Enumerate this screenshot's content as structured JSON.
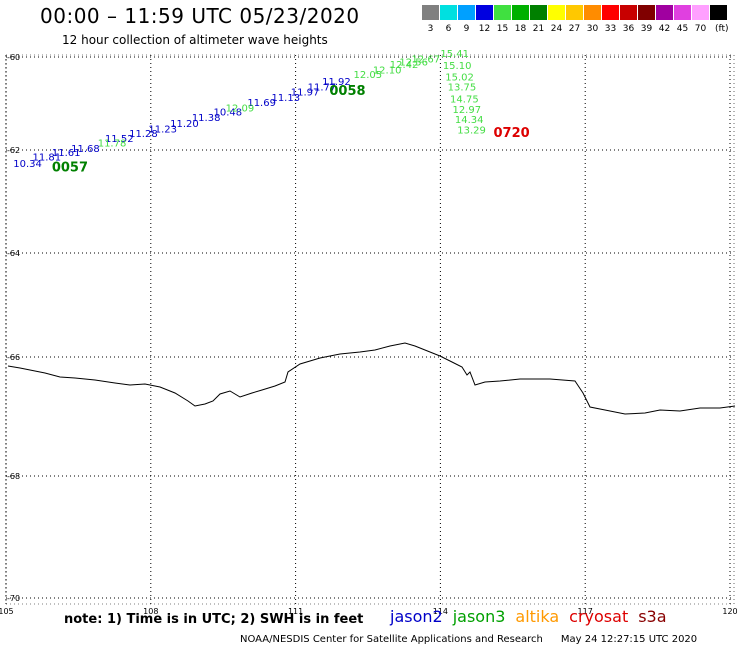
{
  "header": {
    "title": "00:00 – 11:59 UTC 05/23/2020",
    "subtitle": "12 hour collection of altimeter wave heights"
  },
  "scale": {
    "unit": "(ft)",
    "bins": [
      {
        "label": "3",
        "color": "#808080"
      },
      {
        "label": "6",
        "color": "#00e0e0"
      },
      {
        "label": "9",
        "color": "#00a0ff"
      },
      {
        "label": "12",
        "color": "#0000e0"
      },
      {
        "label": "15",
        "color": "#40e040"
      },
      {
        "label": "18",
        "color": "#00b000"
      },
      {
        "label": "21",
        "color": "#008000"
      },
      {
        "label": "24",
        "color": "#ffff00"
      },
      {
        "label": "27",
        "color": "#ffc800"
      },
      {
        "label": "30",
        "color": "#ff8c00"
      },
      {
        "label": "33",
        "color": "#ff0000"
      },
      {
        "label": "36",
        "color": "#c80000"
      },
      {
        "label": "39",
        "color": "#800000"
      },
      {
        "label": "42",
        "color": "#a000a0"
      },
      {
        "label": "45",
        "color": "#e040e0"
      },
      {
        "label": "70",
        "color": "#ffa0ff"
      },
      {
        "label": "",
        "color": "#000000"
      }
    ]
  },
  "map": {
    "lat_labels": [
      "-60",
      "-62",
      "-64",
      "-66",
      "-68",
      "-70"
    ],
    "lon_labels": [
      "105",
      "108",
      "111",
      "114",
      "117",
      "120"
    ],
    "track_jason2": {
      "color": "#0000c8",
      "time": "",
      "values": [
        {
          "text": "10.34",
          "lon": 105.15,
          "lat": -62.33
        },
        {
          "text": "11.81",
          "lon": 105.55,
          "lat": -62.2
        },
        {
          "text": "11.61",
          "lon": 105.95,
          "lat": -62.12
        },
        {
          "text": "11.68",
          "lon": 106.35,
          "lat": -62.04
        },
        {
          "text": "11.52",
          "lon": 107.05,
          "lat": -61.83
        },
        {
          "text": "11.28",
          "lon": 107.55,
          "lat": -61.72
        },
        {
          "text": "11.23",
          "lon": 107.95,
          "lat": -61.62
        },
        {
          "text": "11.20",
          "lon": 108.4,
          "lat": -61.5
        },
        {
          "text": "11.38",
          "lon": 108.85,
          "lat": -61.38
        },
        {
          "text": "10.48",
          "lon": 109.3,
          "lat": -61.26
        },
        {
          "text": "11.69",
          "lon": 110.0,
          "lat": -61.05
        },
        {
          "text": "11.13",
          "lon": 110.5,
          "lat": -60.95
        },
        {
          "text": "11.97",
          "lon": 110.9,
          "lat": -60.83
        },
        {
          "text": "11.77",
          "lon": 111.25,
          "lat": -60.72
        },
        {
          "text": "11.92",
          "lon": 111.55,
          "lat": -60.6
        }
      ]
    },
    "track_jason3": {
      "color": "#44dd44",
      "values": [
        {
          "text": "11.78",
          "lon": 106.9,
          "lat": -61.93
        },
        {
          "text": "12.09",
          "lon": 109.55,
          "lat": -61.17
        },
        {
          "text": "12.05",
          "lon": 112.2,
          "lat": -60.45
        },
        {
          "text": "12.10",
          "lon": 112.6,
          "lat": -60.36
        },
        {
          "text": "12.42",
          "lon": 112.95,
          "lat": -60.24
        },
        {
          "text": "12.56",
          "lon": 113.15,
          "lat": -60.18
        },
        {
          "text": "12.67",
          "lon": 113.4,
          "lat": -60.12
        }
      ]
    },
    "track_saral": {
      "color": "#44dd44",
      "values": [
        {
          "text": "15.41",
          "lon": 114.0,
          "lat": -60.0
        },
        {
          "text": "15.10",
          "lon": 114.05,
          "lat": -60.26
        },
        {
          "text": "15.02",
          "lon": 114.1,
          "lat": -60.5
        },
        {
          "text": "13.75",
          "lon": 114.15,
          "lat": -60.72
        },
        {
          "text": "14.75",
          "lon": 114.2,
          "lat": -60.98
        },
        {
          "text": "12.97",
          "lon": 114.25,
          "lat": -61.2
        },
        {
          "text": "14.34",
          "lon": 114.3,
          "lat": -61.42
        },
        {
          "text": "13.29",
          "lon": 114.35,
          "lat": -61.65
        }
      ]
    },
    "time_labels": [
      {
        "text": "0057",
        "color": "#008000",
        "lon": 105.95,
        "lat": -62.42
      },
      {
        "text": "0058",
        "color": "#008000",
        "lon": 111.7,
        "lat": -60.82
      },
      {
        "text": "0720",
        "color": "#dd0000",
        "lon": 115.1,
        "lat": -61.72
      }
    ]
  },
  "note": "note: 1) Time is in UTC; 2) SWH is in feet",
  "legend": [
    {
      "name": "jason2",
      "color": "#0000c8"
    },
    {
      "name": "jason3",
      "color": "#00a000"
    },
    {
      "name": "altika",
      "color": "#ff9900"
    },
    {
      "name": "cryosat",
      "color": "#dd0000"
    },
    {
      "name": "s3a",
      "color": "#880000"
    }
  ],
  "footer": {
    "source": "NOAA/NESDIS Center for Satellite Applications and Research",
    "timestamp": "May 24 12:27:15 UTC 2020"
  }
}
